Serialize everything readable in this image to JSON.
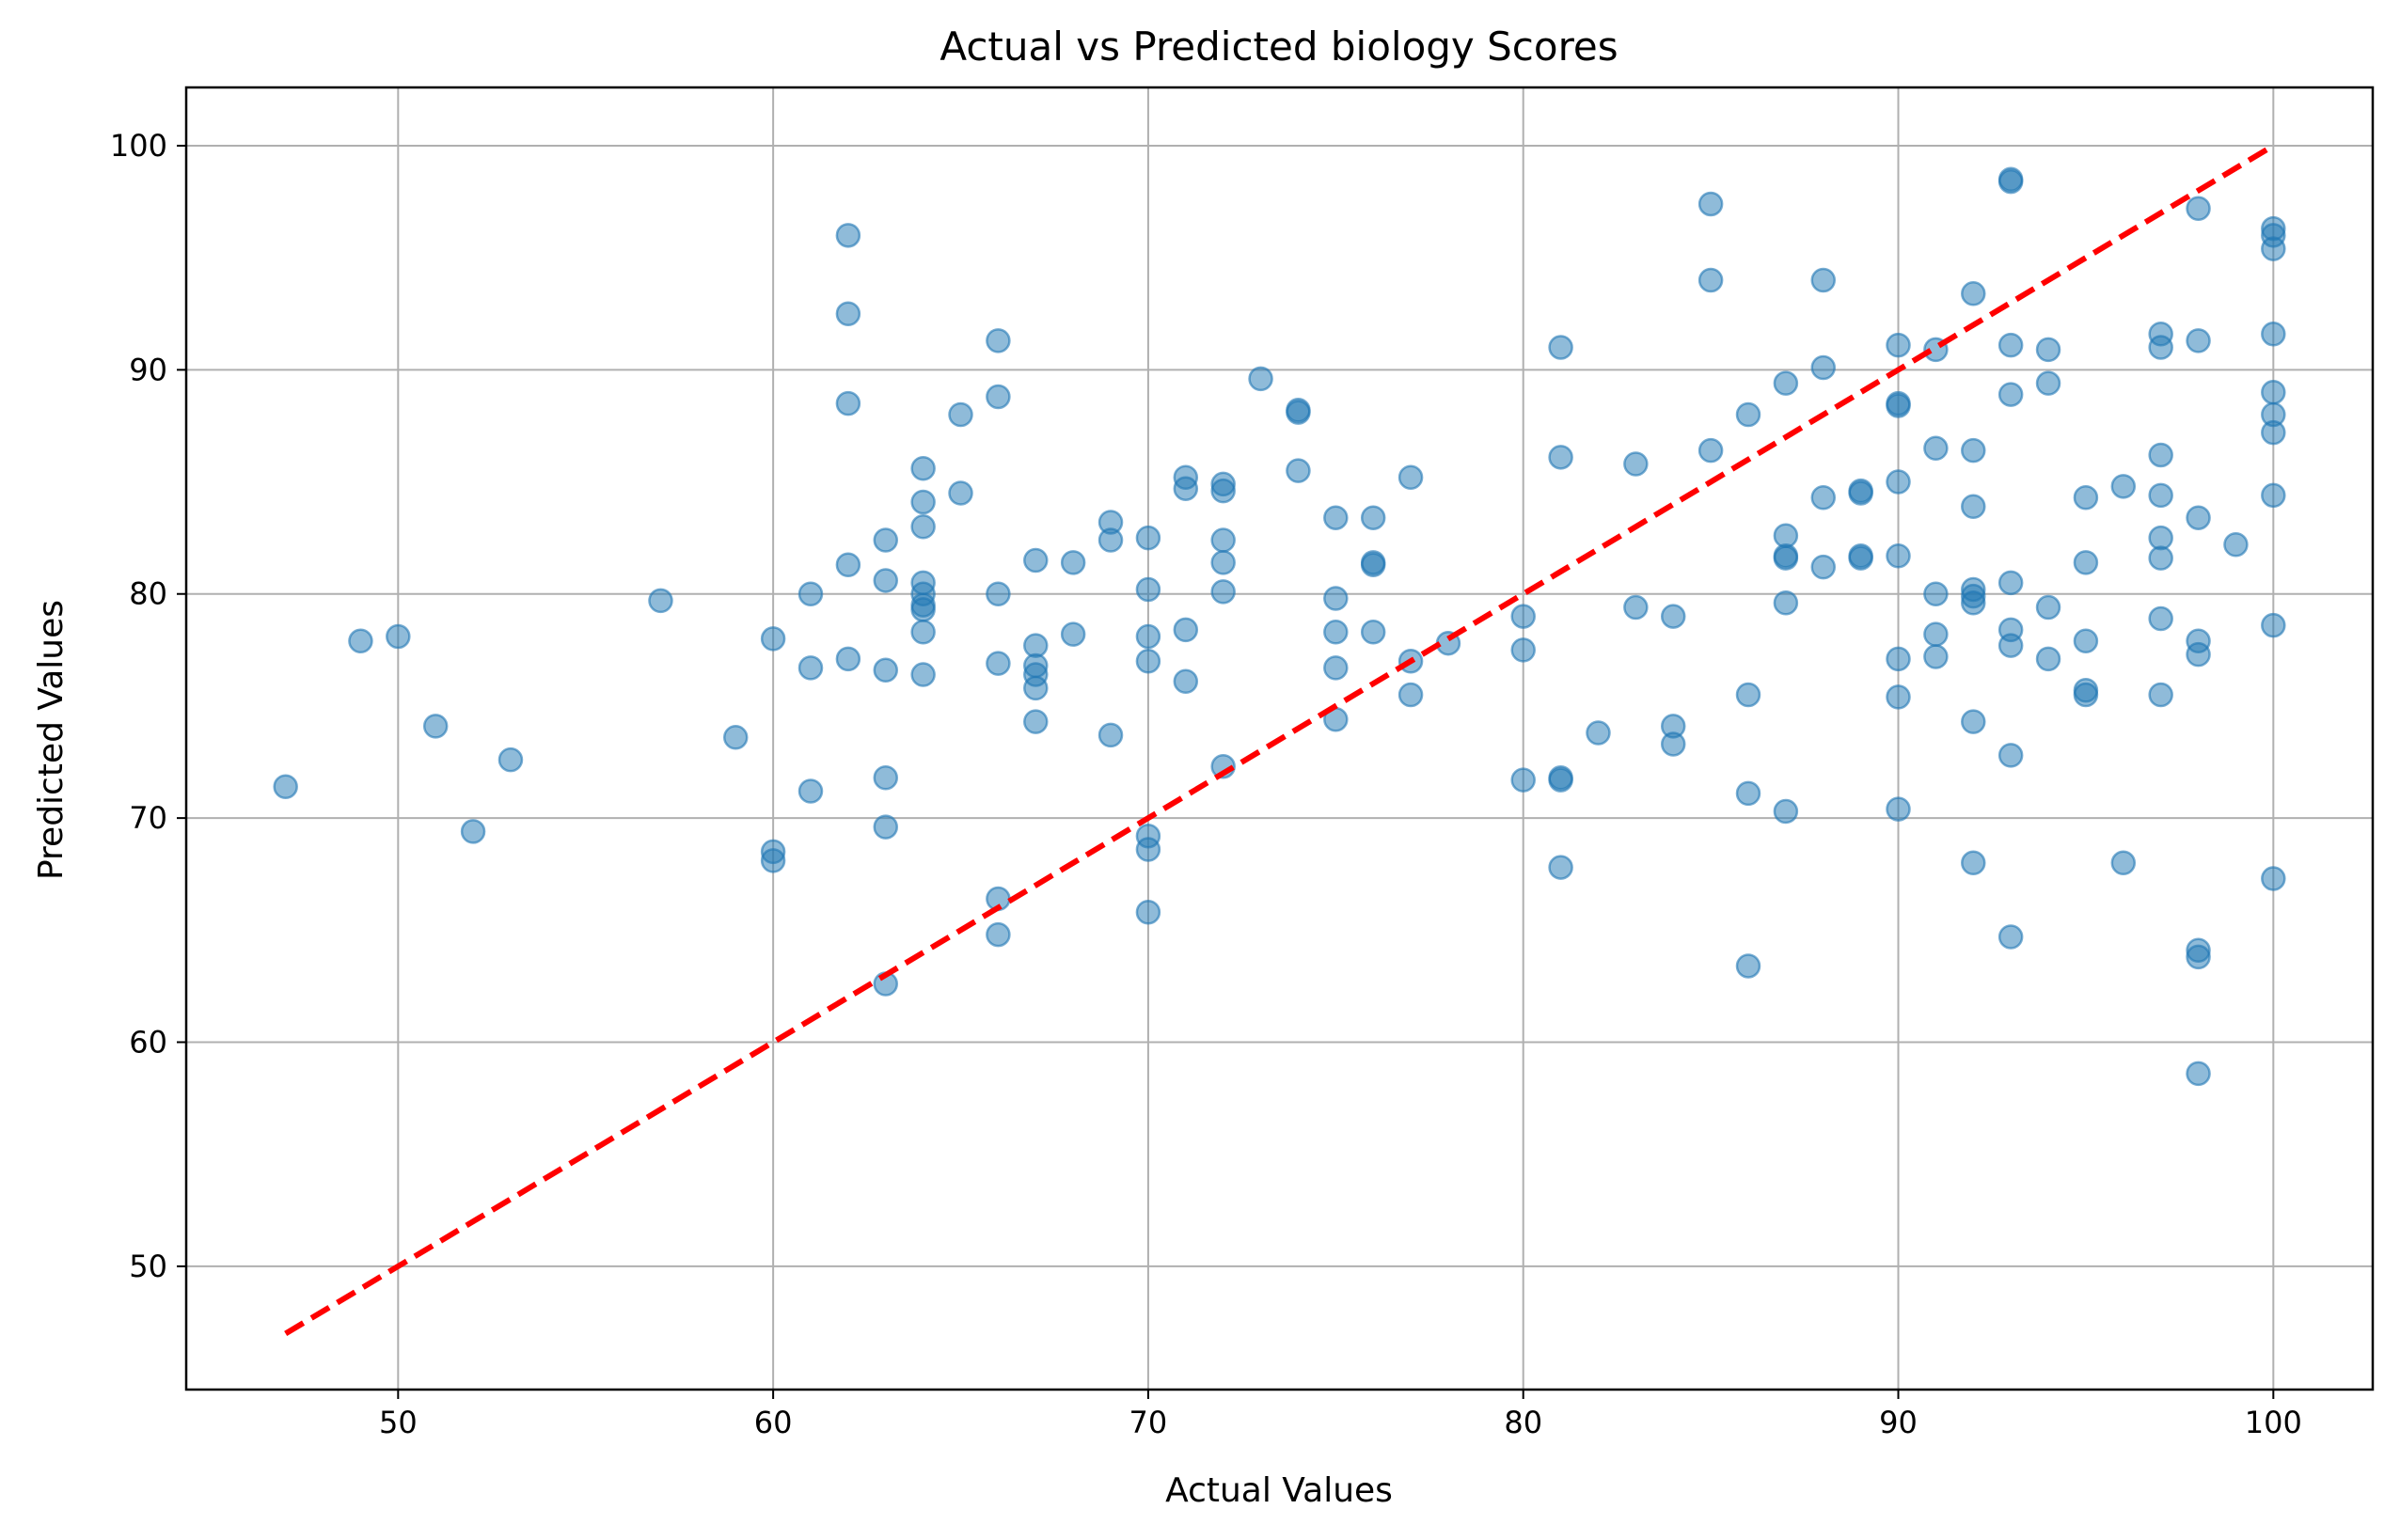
{
  "chart_data": {
    "type": "scatter",
    "title": "Actual vs Predicted biology Scores",
    "xlabel": "Actual Values",
    "ylabel": "Predicted Values",
    "xlim": [
      44.35,
      102.65
    ],
    "ylim": [
      44.5,
      102.6
    ],
    "xticks": [
      50,
      60,
      70,
      80,
      90,
      100
    ],
    "yticks": [
      50,
      60,
      70,
      80,
      90,
      100
    ],
    "grid": true,
    "point_color": "#1f77b4",
    "point_alpha": 0.5,
    "reference_line": {
      "x": [
        47,
        100
      ],
      "y": [
        47,
        100
      ],
      "color": "#ff0000",
      "style": "dashed"
    },
    "series": [
      {
        "points": [
          [
            47,
            71.4
          ],
          [
            49,
            77.9
          ],
          [
            50,
            78.1
          ],
          [
            51,
            74.1
          ],
          [
            52,
            69.4
          ],
          [
            53,
            72.6
          ],
          [
            57,
            79.7
          ],
          [
            59,
            73.6
          ],
          [
            60,
            78.0
          ],
          [
            60,
            68.5
          ],
          [
            60,
            68.1
          ],
          [
            61,
            80.0
          ],
          [
            61,
            76.7
          ],
          [
            61,
            71.2
          ],
          [
            62,
            96.0
          ],
          [
            62,
            92.5
          ],
          [
            62,
            88.5
          ],
          [
            62,
            81.3
          ],
          [
            62,
            77.1
          ],
          [
            63,
            82.4
          ],
          [
            63,
            80.6
          ],
          [
            63,
            76.6
          ],
          [
            63,
            71.8
          ],
          [
            63,
            69.6
          ],
          [
            63,
            62.6
          ],
          [
            64,
            85.6
          ],
          [
            64,
            84.1
          ],
          [
            64,
            83.0
          ],
          [
            64,
            80.5
          ],
          [
            64,
            80.0
          ],
          [
            64,
            79.5
          ],
          [
            64,
            79.3
          ],
          [
            64,
            78.3
          ],
          [
            64,
            76.4
          ],
          [
            65,
            88.0
          ],
          [
            65,
            84.5
          ],
          [
            66,
            91.3
          ],
          [
            66,
            88.8
          ],
          [
            66,
            80.0
          ],
          [
            66,
            76.9
          ],
          [
            66,
            66.4
          ],
          [
            66,
            64.8
          ],
          [
            67,
            81.5
          ],
          [
            67,
            77.7
          ],
          [
            67,
            76.8
          ],
          [
            67,
            76.4
          ],
          [
            67,
            75.8
          ],
          [
            67,
            74.3
          ],
          [
            68,
            81.4
          ],
          [
            68,
            78.2
          ],
          [
            69,
            83.2
          ],
          [
            69,
            82.4
          ],
          [
            69,
            73.7
          ],
          [
            70,
            82.5
          ],
          [
            70,
            80.2
          ],
          [
            70,
            78.1
          ],
          [
            70,
            77.0
          ],
          [
            70,
            69.2
          ],
          [
            70,
            68.6
          ],
          [
            70,
            65.8
          ],
          [
            71,
            85.2
          ],
          [
            71,
            84.7
          ],
          [
            71,
            78.4
          ],
          [
            71,
            76.1
          ],
          [
            72,
            84.9
          ],
          [
            72,
            84.6
          ],
          [
            72,
            82.4
          ],
          [
            72,
            81.4
          ],
          [
            72,
            80.1
          ],
          [
            72,
            72.3
          ],
          [
            73,
            89.6
          ],
          [
            74,
            88.2
          ],
          [
            74,
            88.1
          ],
          [
            74,
            85.5
          ],
          [
            75,
            83.4
          ],
          [
            75,
            79.8
          ],
          [
            75,
            78.3
          ],
          [
            75,
            76.7
          ],
          [
            75,
            74.4
          ],
          [
            76,
            83.4
          ],
          [
            76,
            81.4
          ],
          [
            76,
            81.3
          ],
          [
            76,
            78.3
          ],
          [
            77,
            85.2
          ],
          [
            77,
            77.0
          ],
          [
            77,
            75.5
          ],
          [
            78,
            77.8
          ],
          [
            80,
            79.0
          ],
          [
            80,
            77.5
          ],
          [
            80,
            71.7
          ],
          [
            81,
            91.0
          ],
          [
            81,
            86.1
          ],
          [
            81,
            71.8
          ],
          [
            81,
            71.7
          ],
          [
            81,
            67.8
          ],
          [
            82,
            73.8
          ],
          [
            83,
            85.8
          ],
          [
            83,
            79.4
          ],
          [
            84,
            79.0
          ],
          [
            84,
            74.1
          ],
          [
            84,
            73.3
          ],
          [
            85,
            97.4
          ],
          [
            85,
            94.0
          ],
          [
            85,
            86.4
          ],
          [
            86,
            88.0
          ],
          [
            86,
            75.5
          ],
          [
            86,
            71.1
          ],
          [
            86,
            63.4
          ],
          [
            87,
            89.4
          ],
          [
            87,
            82.6
          ],
          [
            87,
            81.7
          ],
          [
            87,
            81.6
          ],
          [
            87,
            79.6
          ],
          [
            87,
            70.3
          ],
          [
            88,
            94.0
          ],
          [
            88,
            90.1
          ],
          [
            88,
            84.3
          ],
          [
            88,
            81.2
          ],
          [
            89,
            84.6
          ],
          [
            89,
            84.5
          ],
          [
            89,
            81.7
          ],
          [
            89,
            81.6
          ],
          [
            90,
            91.1
          ],
          [
            90,
            88.5
          ],
          [
            90,
            88.4
          ],
          [
            90,
            85.0
          ],
          [
            90,
            81.7
          ],
          [
            90,
            77.1
          ],
          [
            90,
            75.4
          ],
          [
            90,
            70.4
          ],
          [
            91,
            90.9
          ],
          [
            91,
            86.5
          ],
          [
            91,
            80.0
          ],
          [
            91,
            78.2
          ],
          [
            91,
            77.2
          ],
          [
            92,
            93.4
          ],
          [
            92,
            86.4
          ],
          [
            92,
            83.9
          ],
          [
            92,
            80.2
          ],
          [
            92,
            79.9
          ],
          [
            92,
            79.6
          ],
          [
            92,
            74.3
          ],
          [
            92,
            68.0
          ],
          [
            93,
            98.5
          ],
          [
            93,
            98.4
          ],
          [
            93,
            91.1
          ],
          [
            93,
            88.9
          ],
          [
            93,
            80.5
          ],
          [
            93,
            78.4
          ],
          [
            93,
            77.7
          ],
          [
            93,
            72.8
          ],
          [
            93,
            64.7
          ],
          [
            94,
            90.9
          ],
          [
            94,
            89.4
          ],
          [
            94,
            79.4
          ],
          [
            94,
            77.1
          ],
          [
            95,
            84.3
          ],
          [
            95,
            81.4
          ],
          [
            95,
            77.9
          ],
          [
            95,
            75.7
          ],
          [
            95,
            75.5
          ],
          [
            96,
            84.8
          ],
          [
            96,
            68.0
          ],
          [
            97,
            91.6
          ],
          [
            97,
            91.0
          ],
          [
            97,
            86.2
          ],
          [
            97,
            84.4
          ],
          [
            97,
            82.5
          ],
          [
            97,
            81.6
          ],
          [
            97,
            78.9
          ],
          [
            97,
            75.5
          ],
          [
            98,
            97.2
          ],
          [
            98,
            91.3
          ],
          [
            98,
            83.4
          ],
          [
            98,
            77.9
          ],
          [
            98,
            77.3
          ],
          [
            98,
            64.1
          ],
          [
            98,
            63.8
          ],
          [
            98,
            58.6
          ],
          [
            99,
            82.2
          ],
          [
            100,
            96.3
          ],
          [
            100,
            96.0
          ],
          [
            100,
            95.4
          ],
          [
            100,
            91.6
          ],
          [
            100,
            89.0
          ],
          [
            100,
            88.0
          ],
          [
            100,
            87.2
          ],
          [
            100,
            84.4
          ],
          [
            100,
            78.6
          ],
          [
            100,
            67.3
          ]
        ]
      }
    ]
  }
}
